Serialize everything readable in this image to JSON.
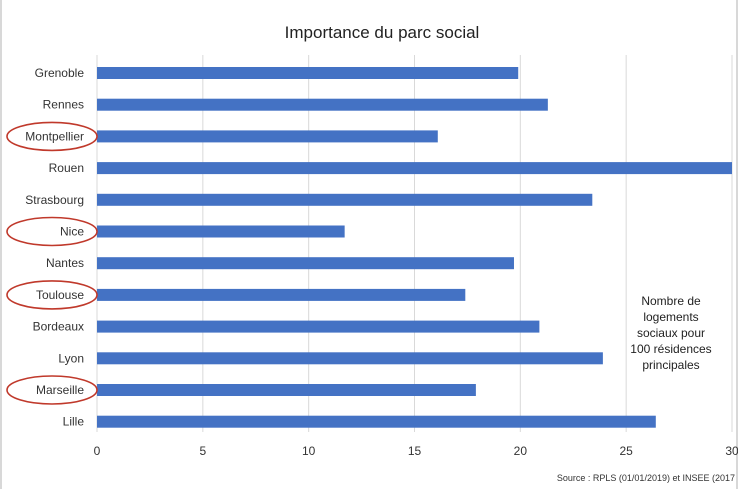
{
  "chart_data": {
    "type": "bar",
    "orientation": "horizontal",
    "title": "Importance du parc social",
    "categories": [
      "Grenoble",
      "Rennes",
      "Montpellier",
      "Rouen",
      "Strasbourg",
      "Nice",
      "Nantes",
      "Toulouse",
      "Bordeaux",
      "Lyon",
      "Marseille",
      "Lille"
    ],
    "values": [
      19.9,
      21.3,
      16.1,
      30.0,
      23.4,
      11.7,
      19.7,
      17.4,
      20.9,
      23.9,
      17.9,
      26.4
    ],
    "circled_categories": [
      "Montpellier",
      "Nice",
      "Toulouse",
      "Marseille"
    ],
    "xlim": [
      0,
      30
    ],
    "xticks": [
      0,
      5,
      10,
      15,
      20,
      25,
      30
    ],
    "grid": true,
    "bar_color": "#4472c4",
    "circle_color": "#c0392b",
    "annotation": [
      "Nombre de",
      "logements",
      "sociaux pour",
      "100 résidences",
      "principales"
    ],
    "source": "Source : RPLS (01/01/2019) et INSEE (2017"
  }
}
